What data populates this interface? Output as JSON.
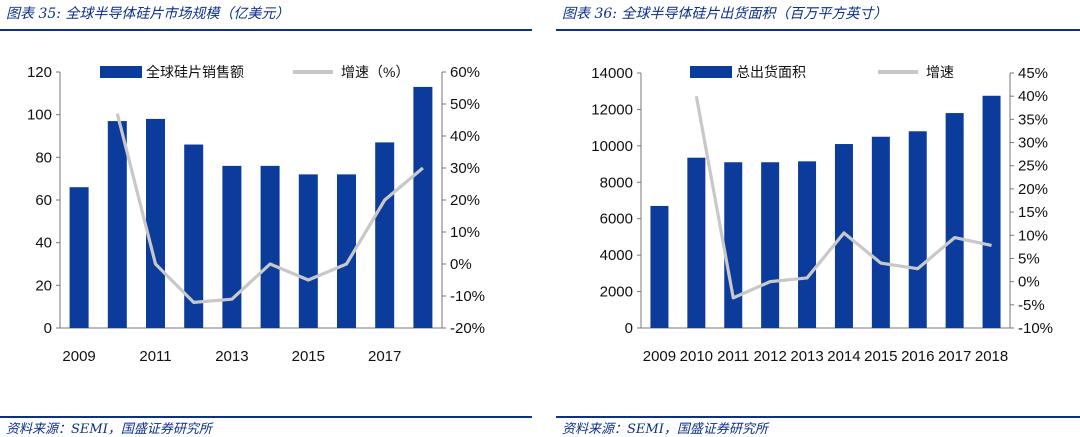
{
  "charts": [
    {
      "figure_title": "图表 35:  全球半导体硅片市场规模（亿美元）",
      "source": "资料来源：SEMI，国盛证券研究所",
      "legend": {
        "bar_label": "全球硅片销售额",
        "line_label": "增速（%）"
      },
      "colors": {
        "bar": "#0b3b9b",
        "line": "#c8c8c8"
      }
    },
    {
      "figure_title": "图表 36:  全球半导体硅片出货面积（百万平方英寸）",
      "source": "资料来源：SEMI，国盛证券研究所",
      "legend": {
        "bar_label": "总出货面积",
        "line_label": "增速"
      },
      "colors": {
        "bar": "#0b3b9b",
        "line": "#c8c8c8"
      }
    }
  ],
  "chart_data": [
    {
      "type": "bar",
      "categories": [
        "2009",
        "2010",
        "2011",
        "2012",
        "2013",
        "2014",
        "2015",
        "2016",
        "2017",
        "2018"
      ],
      "x_tick_labels": [
        "2009",
        "",
        "2011",
        "",
        "2013",
        "",
        "2015",
        "",
        "2017",
        ""
      ],
      "series": [
        {
          "name": "全球硅片销售额",
          "type": "bar",
          "axis": "left",
          "values": [
            66,
            97,
            98,
            86,
            76,
            76,
            72,
            72,
            87,
            113
          ]
        },
        {
          "name": "增速（%）",
          "type": "line",
          "axis": "right",
          "values": [
            null,
            47,
            0,
            -12,
            -11,
            0,
            -5,
            0,
            20,
            30
          ]
        }
      ],
      "ylim": [
        0,
        120
      ],
      "y_ticks": [
        "0",
        "20",
        "40",
        "60",
        "80",
        "100",
        "120"
      ],
      "y2lim": [
        -20,
        60
      ],
      "y2_ticks": [
        "-20%",
        "-10%",
        "0%",
        "10%",
        "20%",
        "30%",
        "40%",
        "50%",
        "60%"
      ],
      "grid": false,
      "legend_position": "top"
    },
    {
      "type": "bar",
      "categories": [
        "2009",
        "2010",
        "2011",
        "2012",
        "2013",
        "2014",
        "2015",
        "2016",
        "2017",
        "2018"
      ],
      "x_tick_labels": [
        "2009",
        "2010",
        "2011",
        "2012",
        "2013",
        "2014",
        "2015",
        "2016",
        "2017",
        "2018"
      ],
      "series": [
        {
          "name": "总出货面积",
          "type": "bar",
          "axis": "left",
          "values": [
            6700,
            9350,
            9100,
            9100,
            9150,
            10100,
            10500,
            10800,
            11800,
            12750
          ]
        },
        {
          "name": "增速",
          "type": "line",
          "axis": "right",
          "values": [
            null,
            40,
            -3.5,
            0,
            0.8,
            10.5,
            4,
            2.8,
            9.5,
            7.8
          ]
        }
      ],
      "ylim": [
        0,
        14000
      ],
      "y_ticks": [
        "0",
        "2000",
        "4000",
        "6000",
        "8000",
        "10000",
        "12000",
        "14000"
      ],
      "y2lim": [
        -10,
        45
      ],
      "y2_ticks": [
        "-10%",
        "-5%",
        "0%",
        "5%",
        "10%",
        "15%",
        "20%",
        "25%",
        "30%",
        "35%",
        "40%",
        "45%"
      ],
      "grid": false,
      "legend_position": "top"
    }
  ]
}
